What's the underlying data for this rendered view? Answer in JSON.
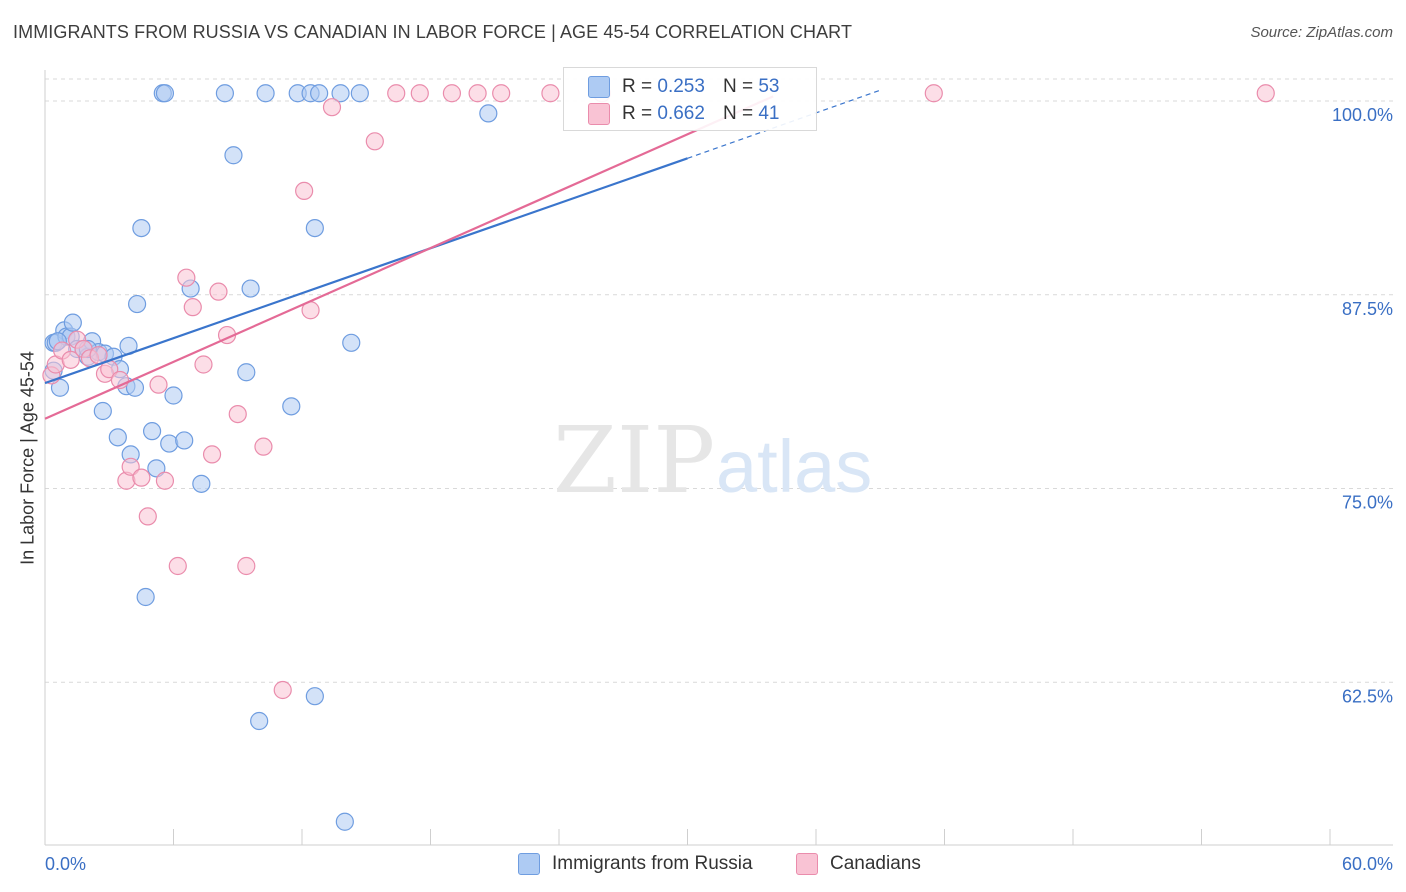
{
  "title": "IMMIGRANTS FROM RUSSIA VS CANADIAN IN LABOR FORCE | AGE 45-54 CORRELATION CHART",
  "source": "Source: ZipAtlas.com",
  "watermark": {
    "zip": "ZIP",
    "atlas": "atlas"
  },
  "legend": {
    "r_label": "R =",
    "n_label": "N =",
    "items": [
      {
        "name": "Immigrants from Russia",
        "r": "0.253",
        "n": "53",
        "fill": "#aecbf3",
        "stroke": "#6f9de0"
      },
      {
        "name": "Canadians",
        "r": "0.662",
        "n": "41",
        "fill": "#f9c3d4",
        "stroke": "#ea8cac"
      }
    ]
  },
  "colors": {
    "blue_line": "#3a75cc",
    "pink_line": "#e46a96",
    "axis_text": "#3a6fc4",
    "grid": "#d9d9d9"
  },
  "chart_data": {
    "type": "scatter",
    "ylabel": "In Labor Force | Age 45-54",
    "xlim": [
      0,
      60
    ],
    "ylim": [
      52,
      102
    ],
    "x_tick_labels": [
      {
        "value": 0,
        "label": "0.0%"
      },
      {
        "value": 60,
        "label": "60.0%"
      }
    ],
    "y_tick_labels": [
      {
        "value": 62.5,
        "label": "62.5%"
      },
      {
        "value": 75.0,
        "label": "75.0%"
      },
      {
        "value": 87.5,
        "label": "87.5%"
      },
      {
        "value": 100.0,
        "label": "100.0%"
      }
    ],
    "grid": true,
    "series": [
      {
        "name": "Immigrants from Russia",
        "color": "#6f9de0",
        "points": [
          [
            0.4,
            82.6
          ],
          [
            0.4,
            84.4
          ],
          [
            0.5,
            84.4
          ],
          [
            0.7,
            81.5
          ],
          [
            0.9,
            85.2
          ],
          [
            1.0,
            84.8
          ],
          [
            1.2,
            84.8
          ],
          [
            1.3,
            85.7
          ],
          [
            1.5,
            84.0
          ],
          [
            1.8,
            84.0
          ],
          [
            2.0,
            83.5
          ],
          [
            2.2,
            84.5
          ],
          [
            2.5,
            83.8
          ],
          [
            2.7,
            80.0
          ],
          [
            2.8,
            83.7
          ],
          [
            3.2,
            83.5
          ],
          [
            3.4,
            78.3
          ],
          [
            3.5,
            82.7
          ],
          [
            3.8,
            81.6
          ],
          [
            3.9,
            84.2
          ],
          [
            4.0,
            77.2
          ],
          [
            4.3,
            86.9
          ],
          [
            4.2,
            81.5
          ],
          [
            4.5,
            91.8
          ],
          [
            4.7,
            68.0
          ],
          [
            5.0,
            78.7
          ],
          [
            5.2,
            76.3
          ],
          [
            5.5,
            100.5
          ],
          [
            5.6,
            100.5
          ],
          [
            5.8,
            77.9
          ],
          [
            6.0,
            81.0
          ],
          [
            6.5,
            78.1
          ],
          [
            6.8,
            87.9
          ],
          [
            7.3,
            75.3
          ],
          [
            8.4,
            100.5
          ],
          [
            8.8,
            96.5
          ],
          [
            9.4,
            82.5
          ],
          [
            9.6,
            87.9
          ],
          [
            10.0,
            60.0
          ],
          [
            10.3,
            100.5
          ],
          [
            11.5,
            80.3
          ],
          [
            11.8,
            100.5
          ],
          [
            12.4,
            100.5
          ],
          [
            12.6,
            61.6
          ],
          [
            12.8,
            100.5
          ],
          [
            12.6,
            91.8
          ],
          [
            13.8,
            100.5
          ],
          [
            14.0,
            53.5
          ],
          [
            14.3,
            84.4
          ],
          [
            14.7,
            100.5
          ],
          [
            20.7,
            99.2
          ],
          [
            2.0,
            84.0
          ],
          [
            0.6,
            84.5
          ]
        ]
      },
      {
        "name": "Canadians",
        "color": "#ea8cac",
        "points": [
          [
            0.3,
            82.3
          ],
          [
            0.5,
            83.0
          ],
          [
            0.8,
            83.9
          ],
          [
            1.2,
            83.3
          ],
          [
            1.5,
            84.6
          ],
          [
            1.8,
            84.0
          ],
          [
            2.1,
            83.4
          ],
          [
            2.5,
            83.6
          ],
          [
            2.8,
            82.4
          ],
          [
            3.0,
            82.7
          ],
          [
            3.5,
            82.0
          ],
          [
            3.8,
            75.5
          ],
          [
            4.0,
            76.4
          ],
          [
            4.5,
            75.7
          ],
          [
            4.8,
            73.2
          ],
          [
            5.3,
            81.7
          ],
          [
            5.6,
            75.5
          ],
          [
            6.2,
            70.0
          ],
          [
            6.6,
            88.6
          ],
          [
            6.9,
            86.7
          ],
          [
            7.4,
            83.0
          ],
          [
            7.8,
            77.2
          ],
          [
            8.1,
            87.7
          ],
          [
            8.5,
            84.9
          ],
          [
            9.0,
            79.8
          ],
          [
            9.4,
            70.0
          ],
          [
            10.2,
            77.7
          ],
          [
            11.1,
            62.0
          ],
          [
            12.1,
            94.2
          ],
          [
            12.4,
            86.5
          ],
          [
            13.4,
            99.6
          ],
          [
            15.4,
            97.4
          ],
          [
            16.4,
            100.5
          ],
          [
            17.5,
            100.5
          ],
          [
            19.0,
            100.5
          ],
          [
            20.2,
            100.5
          ],
          [
            21.3,
            100.5
          ],
          [
            23.6,
            100.5
          ],
          [
            26.0,
            100.5
          ],
          [
            41.5,
            100.5
          ],
          [
            57.0,
            100.5
          ]
        ]
      }
    ],
    "trendlines": [
      {
        "series": "Immigrants from Russia",
        "from": [
          0,
          81.8
        ],
        "to": [
          30,
          96.3
        ],
        "dashed_to": [
          39,
          100.7
        ]
      },
      {
        "series": "Canadians",
        "from": [
          0,
          79.5
        ],
        "to": [
          34,
          100.3
        ]
      }
    ]
  }
}
